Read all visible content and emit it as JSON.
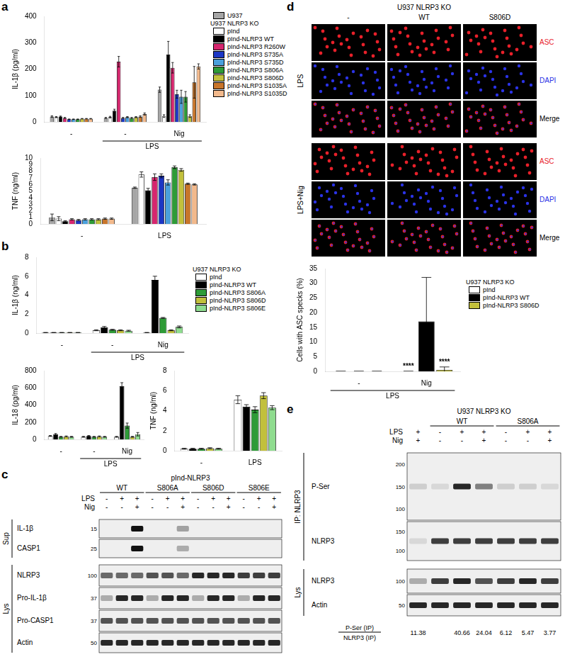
{
  "panel_labels": [
    "a",
    "b",
    "c",
    "d",
    "e"
  ],
  "chart_data": [
    {
      "panel": "a",
      "type": "bar",
      "y_label": "IL-1β (pg/ml)",
      "categories": [
        "-",
        "-",
        "Nig"
      ],
      "group_labels": [
        {
          "label": "LPS",
          "categories": [
            1,
            2
          ]
        }
      ],
      "ylim": [
        0,
        400
      ],
      "yticks": [
        0,
        100,
        200,
        300,
        400
      ],
      "grid": false,
      "legend": "right",
      "legend_heading": {
        "text": "U937 NLRP3 KO",
        "before_series": 1
      },
      "series": [
        {
          "name": "U937",
          "color": "#a6a6a6",
          "values": [
            20,
            15,
            122
          ],
          "errors": [
            3,
            2,
            10
          ]
        },
        {
          "name": "pInd",
          "color": "#ffffff",
          "values": [
            18,
            18,
            22
          ],
          "errors": [
            2,
            3,
            5
          ]
        },
        {
          "name": "pInd-NLRP3 WT",
          "color": "#000000",
          "values": [
            20,
            42,
            255
          ],
          "errors": [
            2,
            6,
            50
          ]
        },
        {
          "name": "pInd-NLRP3 R260W",
          "color": "#d6266e",
          "values": [
            15,
            228,
            205
          ],
          "errors": [
            2,
            20,
            20
          ]
        },
        {
          "name": "pInd-NLRP3 S735A",
          "color": "#1c37c4",
          "values": [
            10,
            15,
            105
          ],
          "errors": [
            1,
            2,
            15
          ]
        },
        {
          "name": "pInd-NLRP3 S735D",
          "color": "#4aa0dc",
          "values": [
            10,
            18,
            95
          ],
          "errors": [
            1,
            2,
            25
          ]
        },
        {
          "name": "pInd-NLRP3 S806A",
          "color": "#2e9b37",
          "values": [
            10,
            15,
            95
          ],
          "errors": [
            1,
            2,
            20
          ]
        },
        {
          "name": "pInd-NLRP3 S806D",
          "color": "#c2c03c",
          "values": [
            12,
            18,
            22
          ],
          "errors": [
            1,
            2,
            5
          ]
        },
        {
          "name": "pInd-NLRP3 S1035A",
          "color": "#c8752a",
          "values": [
            12,
            20,
            150
          ],
          "errors": [
            1,
            3,
            60
          ]
        },
        {
          "name": "pInd-NLRP3 S1035D",
          "color": "#f2b98c",
          "values": [
            12,
            30,
            210
          ],
          "errors": [
            1,
            4,
            10
          ]
        }
      ]
    },
    {
      "panel": "a",
      "type": "bar",
      "y_label": "TNF (ng/ml)",
      "categories": [
        "-",
        "LPS"
      ],
      "ylim": [
        0,
        10
      ],
      "yticks": [
        0,
        1,
        2,
        3,
        4,
        5,
        6,
        7,
        8,
        9,
        10
      ],
      "grid": false,
      "series": [
        {
          "name": "U937",
          "color": "#a6a6a6",
          "values": [
            1.0,
            5.5
          ],
          "errors": [
            0.5,
            0.1
          ]
        },
        {
          "name": "pInd",
          "color": "#ffffff",
          "values": [
            0.8,
            7.5
          ],
          "errors": [
            0.3,
            0.4
          ]
        },
        {
          "name": "pInd-NLRP3 WT",
          "color": "#000000",
          "values": [
            0.4,
            5.1
          ],
          "errors": [
            0.1,
            0.3
          ]
        },
        {
          "name": "pInd-NLRP3 R260W",
          "color": "#d6266e",
          "values": [
            0.7,
            7.1
          ],
          "errors": [
            0.1,
            0.5
          ]
        },
        {
          "name": "pInd-NLRP3 S735A",
          "color": "#1c37c4",
          "values": [
            0.6,
            7.3
          ],
          "errors": [
            0.1,
            0.3
          ]
        },
        {
          "name": "pInd-NLRP3 S735D",
          "color": "#4aa0dc",
          "values": [
            0.7,
            6.3
          ],
          "errors": [
            0.1,
            0.4
          ]
        },
        {
          "name": "pInd-NLRP3 S806A",
          "color": "#2e9b37",
          "values": [
            0.7,
            8.6
          ],
          "errors": [
            0.1,
            0.2
          ]
        },
        {
          "name": "pInd-NLRP3 S806D",
          "color": "#c2c03c",
          "values": [
            0.7,
            8.2
          ],
          "errors": [
            0.1,
            0.2
          ]
        },
        {
          "name": "pInd-NLRP3 S1035A",
          "color": "#c8752a",
          "values": [
            0.8,
            6.1
          ],
          "errors": [
            0.1,
            0.1
          ]
        },
        {
          "name": "pInd-NLRP3 S1035D",
          "color": "#f2b98c",
          "values": [
            0.8,
            6.0
          ],
          "errors": [
            0.1,
            0.1
          ]
        }
      ]
    },
    {
      "panel": "b",
      "type": "bar",
      "y_label": "IL-1β (ng/ml)",
      "categories": [
        "-",
        "-",
        "Nig"
      ],
      "group_labels": [
        {
          "label": "LPS",
          "categories": [
            1,
            2
          ]
        }
      ],
      "ylim": [
        0,
        8
      ],
      "yticks": [
        0,
        2,
        4,
        6,
        8
      ],
      "grid": false,
      "legend": "right",
      "legend_heading": {
        "text": "U937 NLRP3 KO",
        "before_series": 0
      },
      "series": [
        {
          "name": "pInd",
          "color": "#ffffff",
          "values": [
            0.05,
            0.3,
            0.05
          ],
          "errors": [
            0.02,
            0.05,
            0.02
          ]
        },
        {
          "name": "pInd-NLRP3 WT",
          "color": "#000000",
          "values": [
            0.05,
            0.6,
            5.6
          ],
          "errors": [
            0.02,
            0.1,
            0.4
          ]
        },
        {
          "name": "pInd-NLRP3 S806A",
          "color": "#2e9b37",
          "values": [
            0.05,
            0.35,
            1.6
          ],
          "errors": [
            0.02,
            0.05,
            0.05
          ]
        },
        {
          "name": "pInd-NLRP3 S806D",
          "color": "#c2c03c",
          "values": [
            0.05,
            0.3,
            0.3
          ],
          "errors": [
            0.02,
            0.05,
            0.05
          ]
        },
        {
          "name": "pInd-NLRP3 S806E",
          "color": "#8fdc8f",
          "values": [
            0.05,
            0.25,
            0.65
          ],
          "errors": [
            0.02,
            0.05,
            0.1
          ]
        }
      ]
    },
    {
      "panel": "b",
      "type": "bar",
      "y_label": "IL-18 (pg/ml)",
      "categories": [
        "-",
        "-",
        "Nig"
      ],
      "group_labels": [
        {
          "label": "LPS",
          "categories": [
            1,
            2
          ]
        }
      ],
      "ylim": [
        0,
        800
      ],
      "yticks": [
        0,
        200,
        400,
        600,
        800
      ],
      "grid": false,
      "series": [
        {
          "name": "pInd",
          "color": "#ffffff",
          "values": [
            40,
            30,
            30
          ],
          "errors": [
            5,
            5,
            5
          ]
        },
        {
          "name": "pInd-NLRP3 WT",
          "color": "#000000",
          "values": [
            60,
            40,
            620
          ],
          "errors": [
            8,
            5,
            40
          ]
        },
        {
          "name": "pInd-NLRP3 S806A",
          "color": "#2e9b37",
          "values": [
            30,
            30,
            160
          ],
          "errors": [
            5,
            5,
            30
          ]
        },
        {
          "name": "pInd-NLRP3 S806D",
          "color": "#c2c03c",
          "values": [
            35,
            35,
            30
          ],
          "errors": [
            5,
            5,
            5
          ]
        },
        {
          "name": "pInd-NLRP3 S806E",
          "color": "#8fdc8f",
          "values": [
            30,
            30,
            60
          ],
          "errors": [
            5,
            5,
            20
          ]
        }
      ]
    },
    {
      "panel": "b",
      "type": "bar",
      "y_label": "TNF (ng/ml)",
      "categories": [
        "-",
        "LPS"
      ],
      "ylim": [
        0,
        8
      ],
      "yticks": [
        0,
        2,
        4,
        6,
        8
      ],
      "grid": false,
      "series": [
        {
          "name": "pInd",
          "color": "#ffffff",
          "values": [
            0.2,
            5.1
          ],
          "errors": [
            0.05,
            0.4
          ]
        },
        {
          "name": "pInd-NLRP3 WT",
          "color": "#000000",
          "values": [
            0.2,
            4.4
          ],
          "errors": [
            0.05,
            0.2
          ]
        },
        {
          "name": "pInd-NLRP3 S806A",
          "color": "#2e9b37",
          "values": [
            0.2,
            4.1
          ],
          "errors": [
            0.05,
            0.3
          ]
        },
        {
          "name": "pInd-NLRP3 S806D",
          "color": "#c2c03c",
          "values": [
            0.25,
            5.5
          ],
          "errors": [
            0.05,
            0.3
          ]
        },
        {
          "name": "pInd-NLRP3 S806E",
          "color": "#8fdc8f",
          "values": [
            0.2,
            4.3
          ],
          "errors": [
            0.05,
            0.2
          ]
        }
      ]
    },
    {
      "panel": "d",
      "type": "bar",
      "y_label": "Cells with ASC specks (%)",
      "categories": [
        "-",
        "Nig"
      ],
      "group_labels": [
        {
          "label": "LPS",
          "categories": [
            0,
            1
          ]
        }
      ],
      "ylim": [
        0,
        35
      ],
      "yticks": [
        0,
        5,
        10,
        15,
        20,
        25,
        30,
        35
      ],
      "grid": false,
      "legend": "right",
      "legend_heading": {
        "text": "U937 NLRP3 KO",
        "before_series": 0
      },
      "annotations": [
        {
          "text": "****",
          "category": 1,
          "series": 0
        },
        {
          "text": "****",
          "category": 1,
          "series": 2
        }
      ],
      "series": [
        {
          "name": "pInd",
          "color": "#ffffff",
          "values": [
            0,
            0
          ],
          "errors": [
            0,
            0
          ]
        },
        {
          "name": "pInd-NLRP3 WT",
          "color": "#000000",
          "values": [
            0,
            17
          ],
          "errors": [
            0,
            15
          ]
        },
        {
          "name": "pInd-NLRP3 S806D",
          "color": "#c2c03c",
          "values": [
            0,
            0.5
          ],
          "errors": [
            0,
            1
          ]
        }
      ]
    }
  ],
  "blot_c": {
    "header": "pInd-NLRP3",
    "groups": [
      {
        "label": "WT",
        "lanes": [
          0,
          1,
          2
        ]
      },
      {
        "label": "S806A",
        "lanes": [
          3,
          4,
          5
        ]
      },
      {
        "label": "S806D",
        "lanes": [
          6,
          7,
          8
        ]
      },
      {
        "label": "S806E",
        "lanes": [
          9,
          10,
          11
        ]
      }
    ],
    "conditions": [
      {
        "label": "LPS",
        "marks": [
          "-",
          "+",
          "+",
          "-",
          "+",
          "+",
          "-",
          "+",
          "+",
          "-",
          "+",
          "+"
        ]
      },
      {
        "label": "Nig",
        "marks": [
          "-",
          "-",
          "+",
          "-",
          "-",
          "+",
          "-",
          "-",
          "+",
          "-",
          "-",
          "+"
        ]
      }
    ],
    "sections": [
      {
        "label": "Sup",
        "rows": [
          {
            "name": "IL-1β",
            "mw": [
              15
            ],
            "signal": [
              0,
              0,
              1,
              0,
              0,
              0.35,
              0,
              0,
              0,
              0,
              0,
              0
            ]
          },
          {
            "name": "CASP1",
            "mw": [
              25
            ],
            "signal": [
              0,
              0,
              1,
              0,
              0,
              0.3,
              0,
              0,
              0,
              0,
              0,
              0
            ]
          }
        ]
      },
      {
        "label": "Lys",
        "rows": [
          {
            "name": "NLRP3",
            "mw": [
              100
            ],
            "signal": [
              0.6,
              0.6,
              0.6,
              0.7,
              0.7,
              0.6,
              0.9,
              0.9,
              0.9,
              0.8,
              0.8,
              0.8
            ]
          },
          {
            "name": "Pro-IL-1β",
            "mw": [
              37
            ],
            "signal": [
              0.3,
              0.9,
              0.9,
              0.3,
              0.9,
              0.9,
              0.3,
              0.9,
              0.9,
              0.3,
              0.9,
              0.9
            ]
          },
          {
            "name": "Pro-CASP1",
            "mw": [
              37
            ],
            "signal": [
              0.7,
              0.7,
              0.7,
              0.7,
              0.7,
              0.7,
              0.7,
              0.7,
              0.7,
              0.7,
              0.7,
              0.7
            ]
          },
          {
            "name": "Actin",
            "mw": [
              50
            ],
            "signal": [
              0.9,
              0.9,
              0.9,
              0.9,
              0.9,
              0.9,
              0.9,
              0.9,
              0.9,
              0.9,
              0.9,
              0.9
            ]
          }
        ]
      }
    ]
  },
  "images_d": {
    "header": "U937 NLRP3 KO",
    "columns": [
      "-",
      "WT",
      "S806D"
    ],
    "row_groups": [
      "LPS",
      "LPS+Nig"
    ],
    "channels": [
      {
        "name": "ASC",
        "color": "#e8202a"
      },
      {
        "name": "DAPI",
        "color": "#2b33e6"
      },
      {
        "name": "Merge",
        "color": "#000000"
      }
    ]
  },
  "blot_e": {
    "header": "U937 NLRP3 KO",
    "groups": [
      {
        "label": "WT",
        "lanes": [
          1,
          2,
          3
        ]
      },
      {
        "label": "S806A",
        "lanes": [
          4,
          5,
          6
        ]
      }
    ],
    "conditions": [
      {
        "label": "LPS",
        "marks": [
          "+",
          "-",
          "+",
          "+",
          "-",
          "+",
          "+"
        ]
      },
      {
        "label": "Nig",
        "marks": [
          "+",
          "-",
          "-",
          "+",
          "-",
          "-",
          "+"
        ]
      }
    ],
    "sections": [
      {
        "label": "IP: NLRP3",
        "rows": [
          {
            "name": "P-Ser",
            "mw": [
              200,
              150,
              100
            ],
            "signal": [
              0.15,
              0.1,
              0.9,
              0.5,
              0.15,
              0.15,
              0.1
            ]
          },
          {
            "name": "NLRP3",
            "mw": [
              150,
              100
            ],
            "signal": [
              0.1,
              0.8,
              0.8,
              0.8,
              0.8,
              0.8,
              0.8
            ]
          }
        ]
      },
      {
        "label": "Lys",
        "rows": [
          {
            "name": "NLRP3",
            "mw": [
              100
            ],
            "signal": [
              0.3,
              0.8,
              0.9,
              0.7,
              0.8,
              0.9,
              0.8
            ]
          },
          {
            "name": "Actin",
            "mw": [
              50
            ],
            "signal": [
              0.9,
              0.9,
              0.9,
              0.9,
              0.9,
              0.9,
              0.9
            ]
          }
        ]
      }
    ],
    "ratio": {
      "numerator": "P-Ser (IP)",
      "denominator": "NLRP3 (IP)",
      "values": [
        11.38,
        null,
        40.66,
        24.04,
        6.12,
        5.47,
        3.77
      ]
    }
  }
}
